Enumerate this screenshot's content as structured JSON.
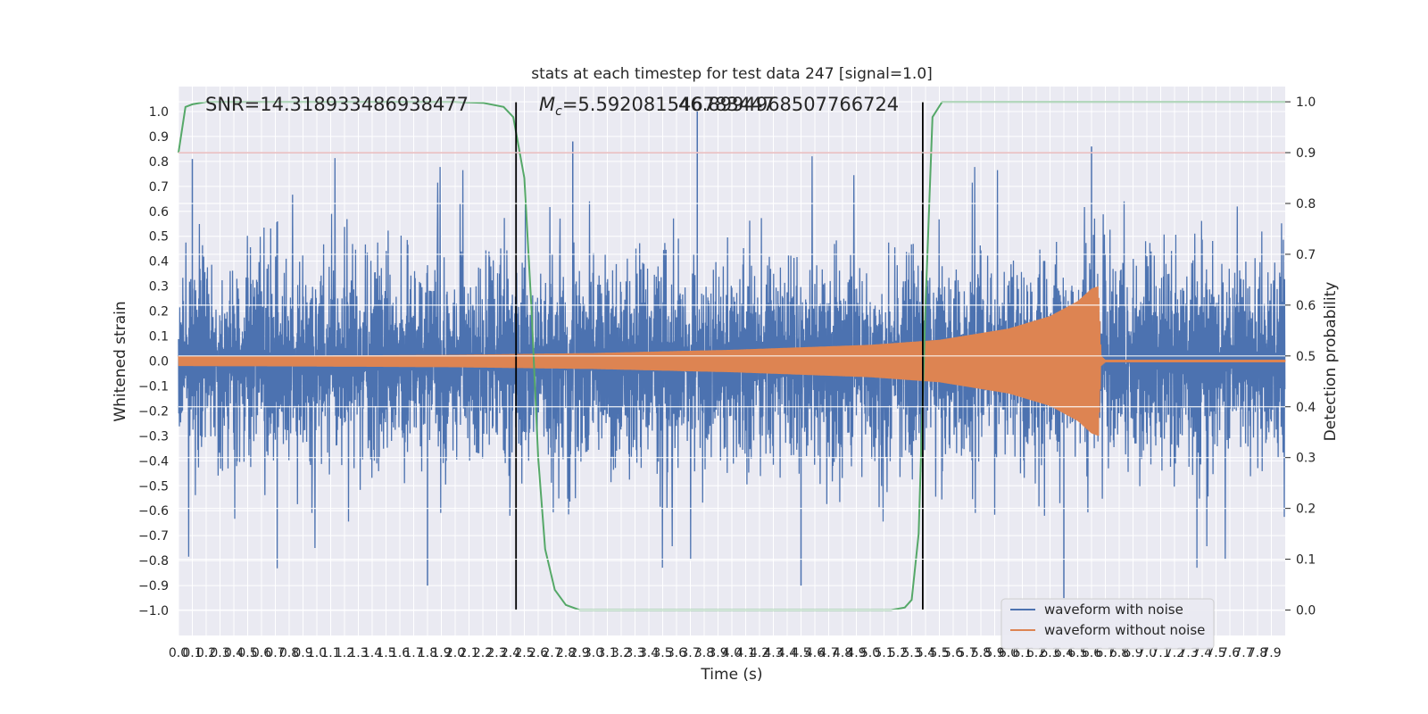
{
  "chart_data": {
    "type": "line",
    "title": "stats at each timestep for test data 247 [signal=1.0]",
    "xlabel": "Time (s)",
    "ylabel": "Whitened strain",
    "y2label": "Detection probability",
    "xlim": [
      0,
      8.0
    ],
    "ylim": [
      -1.1,
      1.1
    ],
    "y2lim": [
      -0.05,
      1.03
    ],
    "x_ticks": [
      0.0,
      0.1,
      0.2,
      0.3,
      0.4,
      0.5,
      0.6,
      0.7,
      0.8,
      0.9,
      1.0,
      1.1,
      1.2,
      1.3,
      1.4,
      1.5,
      1.6,
      1.7,
      1.8,
      1.9,
      2.0,
      2.1,
      2.2,
      2.3,
      2.4,
      2.5,
      2.6,
      2.7,
      2.8,
      2.9,
      3.0,
      3.1,
      3.2,
      3.3,
      3.4,
      3.5,
      3.6,
      3.7,
      3.8,
      3.9,
      4.0,
      4.1,
      4.2,
      4.3,
      4.4,
      4.5,
      4.6,
      4.7,
      4.8,
      4.9,
      5.0,
      5.1,
      5.2,
      5.3,
      5.4,
      5.5,
      5.6,
      5.7,
      5.8,
      5.9,
      6.0,
      6.1,
      6.2,
      6.3,
      6.4,
      6.5,
      6.6,
      6.7,
      6.8,
      6.9,
      7.0,
      7.1,
      7.2,
      7.3,
      7.4,
      7.5,
      7.6,
      7.7,
      7.8,
      7.9
    ],
    "y_ticks": [
      -1.0,
      -0.9,
      -0.8,
      -0.7,
      -0.6,
      -0.5,
      -0.4,
      -0.3,
      -0.2,
      -0.1,
      0.0,
      0.1,
      0.2,
      0.3,
      0.4,
      0.5,
      0.6,
      0.7,
      0.8,
      0.9,
      1.0
    ],
    "y2_ticks": [
      0.0,
      0.1,
      0.2,
      0.3,
      0.4,
      0.5,
      0.6,
      0.7,
      0.8,
      0.9,
      1.0
    ],
    "annotations": {
      "snr": "SNR=14.318933486938477",
      "mc_symbol": "M",
      "mc_subscript": "c",
      "mc_text_a": "=5.592081546783447",
      "mc_text_b": "46.8994968507766724"
    },
    "threshold": {
      "y2": 0.9,
      "color": "#c44e52"
    },
    "vlines": [
      2.44,
      5.38
    ],
    "series": [
      {
        "name": "waveform with noise",
        "color": "#4c72b0",
        "axis": "left",
        "description": "whitened noisy strain, roughly within +/-0.5 with spikes up to +1.0 and down to -0.95, sampled densely across 0-8 s",
        "amplitude_envelope": {
          "typical": 0.4,
          "max": 1.0,
          "min": -0.95
        }
      },
      {
        "name": "waveform without noise",
        "color": "#dd8452",
        "axis": "left",
        "description": "chirp signal growing in amplitude, merger near 6.65 s then ringdown",
        "points": [
          [
            0.0,
            0.02
          ],
          [
            1.0,
            0.022
          ],
          [
            2.0,
            0.025
          ],
          [
            3.0,
            0.032
          ],
          [
            4.0,
            0.045
          ],
          [
            5.0,
            0.065
          ],
          [
            5.5,
            0.085
          ],
          [
            6.0,
            0.13
          ],
          [
            6.3,
            0.18
          ],
          [
            6.5,
            0.24
          ],
          [
            6.6,
            0.29
          ],
          [
            6.65,
            0.3
          ],
          [
            6.67,
            0.02
          ],
          [
            6.7,
            0.005
          ],
          [
            8.0,
            0.005
          ]
        ]
      },
      {
        "name": "detection probability",
        "color": "#55a868",
        "axis": "right",
        "points": [
          [
            0.0,
            0.9
          ],
          [
            0.05,
            0.99
          ],
          [
            0.1,
            0.995
          ],
          [
            0.2,
            1.0
          ],
          [
            1.0,
            1.0
          ],
          [
            2.0,
            1.0
          ],
          [
            2.2,
            0.998
          ],
          [
            2.35,
            0.99
          ],
          [
            2.42,
            0.97
          ],
          [
            2.5,
            0.85
          ],
          [
            2.55,
            0.6
          ],
          [
            2.6,
            0.3
          ],
          [
            2.65,
            0.12
          ],
          [
            2.72,
            0.04
          ],
          [
            2.8,
            0.01
          ],
          [
            2.9,
            0.0
          ],
          [
            3.5,
            0.0
          ],
          [
            4.5,
            0.0
          ],
          [
            5.15,
            0.0
          ],
          [
            5.25,
            0.005
          ],
          [
            5.3,
            0.02
          ],
          [
            5.35,
            0.15
          ],
          [
            5.4,
            0.6
          ],
          [
            5.45,
            0.97
          ],
          [
            5.52,
            1.0
          ],
          [
            6.5,
            1.0
          ],
          [
            8.0,
            1.0
          ]
        ]
      }
    ],
    "legend": {
      "placement": "lower-right",
      "entries": [
        "waveform with noise",
        "waveform without noise"
      ]
    }
  }
}
